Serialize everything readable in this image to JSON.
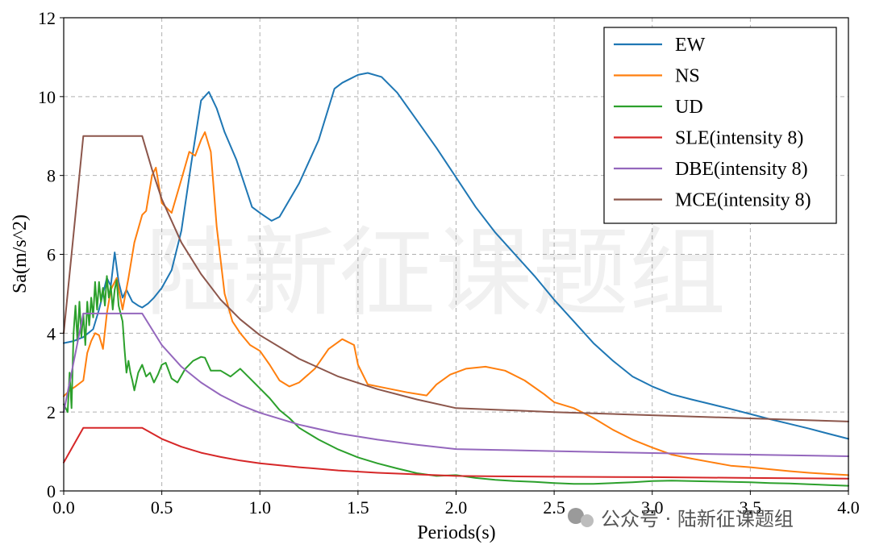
{
  "chart_data": {
    "type": "line",
    "title": "",
    "xlabel": "Periods(s)",
    "ylabel": "Sa(m/s^2)",
    "xlim": [
      0,
      4
    ],
    "ylim": [
      0,
      12
    ],
    "xticks": [
      0.0,
      0.5,
      1.0,
      1.5,
      2.0,
      2.5,
      3.0,
      3.5,
      4.0
    ],
    "xtick_labels": [
      "0.0",
      "0.5",
      "1.0",
      "1.5",
      "2.0",
      "2.5",
      "3.0",
      "3.5",
      "4.0"
    ],
    "yticks": [
      0,
      2,
      4,
      6,
      8,
      10,
      12
    ],
    "ytick_labels": [
      "0",
      "2",
      "4",
      "6",
      "8",
      "10",
      "12"
    ],
    "grid": true,
    "legend_position": "top-right",
    "series": [
      {
        "name": "EW",
        "color": "#1f77b4",
        "points": [
          [
            0.0,
            3.75
          ],
          [
            0.05,
            3.8
          ],
          [
            0.1,
            3.9
          ],
          [
            0.15,
            4.1
          ],
          [
            0.18,
            4.6
          ],
          [
            0.2,
            5.0
          ],
          [
            0.22,
            5.4
          ],
          [
            0.24,
            5.2
          ],
          [
            0.26,
            6.05
          ],
          [
            0.28,
            5.3
          ],
          [
            0.3,
            4.9
          ],
          [
            0.32,
            5.1
          ],
          [
            0.35,
            4.8
          ],
          [
            0.38,
            4.7
          ],
          [
            0.4,
            4.65
          ],
          [
            0.43,
            4.75
          ],
          [
            0.46,
            4.9
          ],
          [
            0.5,
            5.15
          ],
          [
            0.55,
            5.6
          ],
          [
            0.6,
            6.6
          ],
          [
            0.65,
            8.3
          ],
          [
            0.7,
            9.9
          ],
          [
            0.74,
            10.12
          ],
          [
            0.78,
            9.7
          ],
          [
            0.82,
            9.1
          ],
          [
            0.88,
            8.4
          ],
          [
            0.92,
            7.8
          ],
          [
            0.96,
            7.2
          ],
          [
            1.0,
            7.05
          ],
          [
            1.06,
            6.85
          ],
          [
            1.1,
            6.95
          ],
          [
            1.2,
            7.8
          ],
          [
            1.3,
            8.9
          ],
          [
            1.38,
            10.2
          ],
          [
            1.42,
            10.35
          ],
          [
            1.46,
            10.45
          ],
          [
            1.5,
            10.55
          ],
          [
            1.55,
            10.6
          ],
          [
            1.62,
            10.5
          ],
          [
            1.7,
            10.1
          ],
          [
            1.8,
            9.4
          ],
          [
            1.9,
            8.7
          ],
          [
            2.0,
            7.95
          ],
          [
            2.1,
            7.2
          ],
          [
            2.2,
            6.55
          ],
          [
            2.3,
            6.0
          ],
          [
            2.4,
            5.45
          ],
          [
            2.5,
            4.85
          ],
          [
            2.6,
            4.3
          ],
          [
            2.7,
            3.75
          ],
          [
            2.8,
            3.3
          ],
          [
            2.9,
            2.9
          ],
          [
            3.0,
            2.65
          ],
          [
            3.1,
            2.45
          ],
          [
            3.2,
            2.32
          ],
          [
            3.3,
            2.2
          ],
          [
            3.4,
            2.08
          ],
          [
            3.5,
            1.95
          ],
          [
            3.6,
            1.82
          ],
          [
            3.7,
            1.7
          ],
          [
            3.8,
            1.58
          ],
          [
            3.9,
            1.45
          ],
          [
            4.0,
            1.32
          ]
        ]
      },
      {
        "name": "NS",
        "color": "#ff7f0e",
        "points": [
          [
            0.0,
            2.4
          ],
          [
            0.03,
            2.55
          ],
          [
            0.06,
            2.65
          ],
          [
            0.1,
            2.8
          ],
          [
            0.12,
            3.5
          ],
          [
            0.14,
            3.8
          ],
          [
            0.16,
            4.0
          ],
          [
            0.18,
            3.95
          ],
          [
            0.2,
            3.6
          ],
          [
            0.22,
            4.5
          ],
          [
            0.24,
            5.1
          ],
          [
            0.27,
            5.4
          ],
          [
            0.3,
            4.6
          ],
          [
            0.33,
            5.4
          ],
          [
            0.36,
            6.3
          ],
          [
            0.4,
            7.0
          ],
          [
            0.42,
            7.1
          ],
          [
            0.45,
            8.0
          ],
          [
            0.47,
            8.2
          ],
          [
            0.5,
            7.3
          ],
          [
            0.55,
            7.05
          ],
          [
            0.6,
            7.9
          ],
          [
            0.64,
            8.6
          ],
          [
            0.67,
            8.5
          ],
          [
            0.7,
            8.9
          ],
          [
            0.72,
            9.1
          ],
          [
            0.75,
            8.6
          ],
          [
            0.78,
            6.7
          ],
          [
            0.82,
            5.0
          ],
          [
            0.86,
            4.3
          ],
          [
            0.9,
            4.0
          ],
          [
            0.95,
            3.7
          ],
          [
            1.0,
            3.55
          ],
          [
            1.05,
            3.2
          ],
          [
            1.1,
            2.8
          ],
          [
            1.15,
            2.65
          ],
          [
            1.2,
            2.75
          ],
          [
            1.28,
            3.1
          ],
          [
            1.35,
            3.6
          ],
          [
            1.42,
            3.85
          ],
          [
            1.48,
            3.7
          ],
          [
            1.5,
            3.2
          ],
          [
            1.55,
            2.7
          ],
          [
            1.65,
            2.6
          ],
          [
            1.75,
            2.5
          ],
          [
            1.85,
            2.42
          ],
          [
            1.9,
            2.7
          ],
          [
            1.97,
            2.95
          ],
          [
            2.05,
            3.1
          ],
          [
            2.15,
            3.15
          ],
          [
            2.25,
            3.05
          ],
          [
            2.35,
            2.8
          ],
          [
            2.45,
            2.45
          ],
          [
            2.5,
            2.25
          ],
          [
            2.6,
            2.1
          ],
          [
            2.7,
            1.85
          ],
          [
            2.8,
            1.55
          ],
          [
            2.9,
            1.3
          ],
          [
            3.0,
            1.1
          ],
          [
            3.1,
            0.92
          ],
          [
            3.2,
            0.82
          ],
          [
            3.3,
            0.73
          ],
          [
            3.4,
            0.64
          ],
          [
            3.5,
            0.6
          ],
          [
            3.6,
            0.55
          ],
          [
            3.7,
            0.5
          ],
          [
            3.8,
            0.46
          ],
          [
            3.9,
            0.43
          ],
          [
            4.0,
            0.4
          ]
        ]
      },
      {
        "name": "UD",
        "color": "#2ca02c",
        "points": [
          [
            0.0,
            2.2
          ],
          [
            0.02,
            2.0
          ],
          [
            0.03,
            3.0
          ],
          [
            0.04,
            2.1
          ],
          [
            0.05,
            4.0
          ],
          [
            0.06,
            4.7
          ],
          [
            0.07,
            3.8
          ],
          [
            0.08,
            4.8
          ],
          [
            0.09,
            3.9
          ],
          [
            0.1,
            4.5
          ],
          [
            0.11,
            3.7
          ],
          [
            0.12,
            4.8
          ],
          [
            0.13,
            4.2
          ],
          [
            0.14,
            4.9
          ],
          [
            0.15,
            4.4
          ],
          [
            0.16,
            5.3
          ],
          [
            0.17,
            4.6
          ],
          [
            0.18,
            5.3
          ],
          [
            0.19,
            4.8
          ],
          [
            0.2,
            5.15
          ],
          [
            0.21,
            4.7
          ],
          [
            0.22,
            5.45
          ],
          [
            0.23,
            4.9
          ],
          [
            0.24,
            5.2
          ],
          [
            0.25,
            4.6
          ],
          [
            0.26,
            5.1
          ],
          [
            0.27,
            5.35
          ],
          [
            0.28,
            4.7
          ],
          [
            0.3,
            4.3
          ],
          [
            0.31,
            3.6
          ],
          [
            0.32,
            3.0
          ],
          [
            0.33,
            3.3
          ],
          [
            0.34,
            3.0
          ],
          [
            0.35,
            2.8
          ],
          [
            0.36,
            2.55
          ],
          [
            0.38,
            3.0
          ],
          [
            0.4,
            3.2
          ],
          [
            0.42,
            2.9
          ],
          [
            0.44,
            3.0
          ],
          [
            0.46,
            2.75
          ],
          [
            0.48,
            2.95
          ],
          [
            0.5,
            3.2
          ],
          [
            0.52,
            3.25
          ],
          [
            0.55,
            2.85
          ],
          [
            0.58,
            2.75
          ],
          [
            0.62,
            3.1
          ],
          [
            0.66,
            3.3
          ],
          [
            0.7,
            3.4
          ],
          [
            0.72,
            3.38
          ],
          [
            0.75,
            3.05
          ],
          [
            0.8,
            3.05
          ],
          [
            0.85,
            2.9
          ],
          [
            0.9,
            3.1
          ],
          [
            0.95,
            2.85
          ],
          [
            1.0,
            2.6
          ],
          [
            1.05,
            2.35
          ],
          [
            1.1,
            2.05
          ],
          [
            1.15,
            1.85
          ],
          [
            1.2,
            1.6
          ],
          [
            1.3,
            1.3
          ],
          [
            1.4,
            1.05
          ],
          [
            1.5,
            0.85
          ],
          [
            1.6,
            0.7
          ],
          [
            1.7,
            0.57
          ],
          [
            1.8,
            0.45
          ],
          [
            1.9,
            0.38
          ],
          [
            2.0,
            0.4
          ],
          [
            2.1,
            0.33
          ],
          [
            2.2,
            0.28
          ],
          [
            2.3,
            0.25
          ],
          [
            2.4,
            0.23
          ],
          [
            2.5,
            0.2
          ],
          [
            2.6,
            0.18
          ],
          [
            2.7,
            0.18
          ],
          [
            2.8,
            0.2
          ],
          [
            2.9,
            0.22
          ],
          [
            3.0,
            0.25
          ],
          [
            3.1,
            0.26
          ],
          [
            3.2,
            0.25
          ],
          [
            3.3,
            0.24
          ],
          [
            3.4,
            0.23
          ],
          [
            3.5,
            0.22
          ],
          [
            3.6,
            0.2
          ],
          [
            3.7,
            0.19
          ],
          [
            3.8,
            0.17
          ],
          [
            3.9,
            0.15
          ],
          [
            4.0,
            0.13
          ]
        ]
      },
      {
        "name": "SLE(intensity 8)",
        "color": "#d62728",
        "points": [
          [
            0.0,
            0.72
          ],
          [
            0.1,
            1.6
          ],
          [
            0.4,
            1.6
          ],
          [
            0.5,
            1.32
          ],
          [
            0.6,
            1.12
          ],
          [
            0.7,
            0.97
          ],
          [
            0.8,
            0.86
          ],
          [
            0.9,
            0.77
          ],
          [
            1.0,
            0.7
          ],
          [
            1.2,
            0.6
          ],
          [
            1.4,
            0.52
          ],
          [
            1.6,
            0.46
          ],
          [
            1.8,
            0.42
          ],
          [
            2.0,
            0.38
          ],
          [
            2.2,
            0.37
          ],
          [
            2.5,
            0.36
          ],
          [
            3.0,
            0.35
          ],
          [
            3.5,
            0.33
          ],
          [
            4.0,
            0.31
          ]
        ]
      },
      {
        "name": "DBE(intensity 8)",
        "color": "#9467bd",
        "points": [
          [
            0.0,
            2.0
          ],
          [
            0.1,
            4.5
          ],
          [
            0.4,
            4.5
          ],
          [
            0.5,
            3.7
          ],
          [
            0.6,
            3.15
          ],
          [
            0.7,
            2.75
          ],
          [
            0.8,
            2.43
          ],
          [
            0.9,
            2.18
          ],
          [
            1.0,
            1.98
          ],
          [
            1.2,
            1.68
          ],
          [
            1.4,
            1.46
          ],
          [
            1.6,
            1.3
          ],
          [
            1.8,
            1.17
          ],
          [
            2.0,
            1.06
          ],
          [
            2.2,
            1.04
          ],
          [
            2.5,
            1.01
          ],
          [
            3.0,
            0.96
          ],
          [
            3.5,
            0.92
          ],
          [
            4.0,
            0.88
          ]
        ]
      },
      {
        "name": "MCE(intensity 8)",
        "color": "#8c564b",
        "points": [
          [
            0.0,
            4.0
          ],
          [
            0.1,
            9.0
          ],
          [
            0.4,
            9.0
          ],
          [
            0.45,
            8.15
          ],
          [
            0.5,
            7.4
          ],
          [
            0.6,
            6.3
          ],
          [
            0.7,
            5.5
          ],
          [
            0.8,
            4.85
          ],
          [
            0.9,
            4.35
          ],
          [
            1.0,
            3.95
          ],
          [
            1.2,
            3.35
          ],
          [
            1.4,
            2.9
          ],
          [
            1.6,
            2.58
          ],
          [
            1.8,
            2.32
          ],
          [
            2.0,
            2.1
          ],
          [
            2.2,
            2.06
          ],
          [
            2.5,
            2.0
          ],
          [
            3.0,
            1.92
          ],
          [
            3.5,
            1.84
          ],
          [
            4.0,
            1.76
          ]
        ]
      }
    ]
  },
  "watermark": "陆新征课题组",
  "footer_watermark": "公众号 · 陆新征课题组"
}
